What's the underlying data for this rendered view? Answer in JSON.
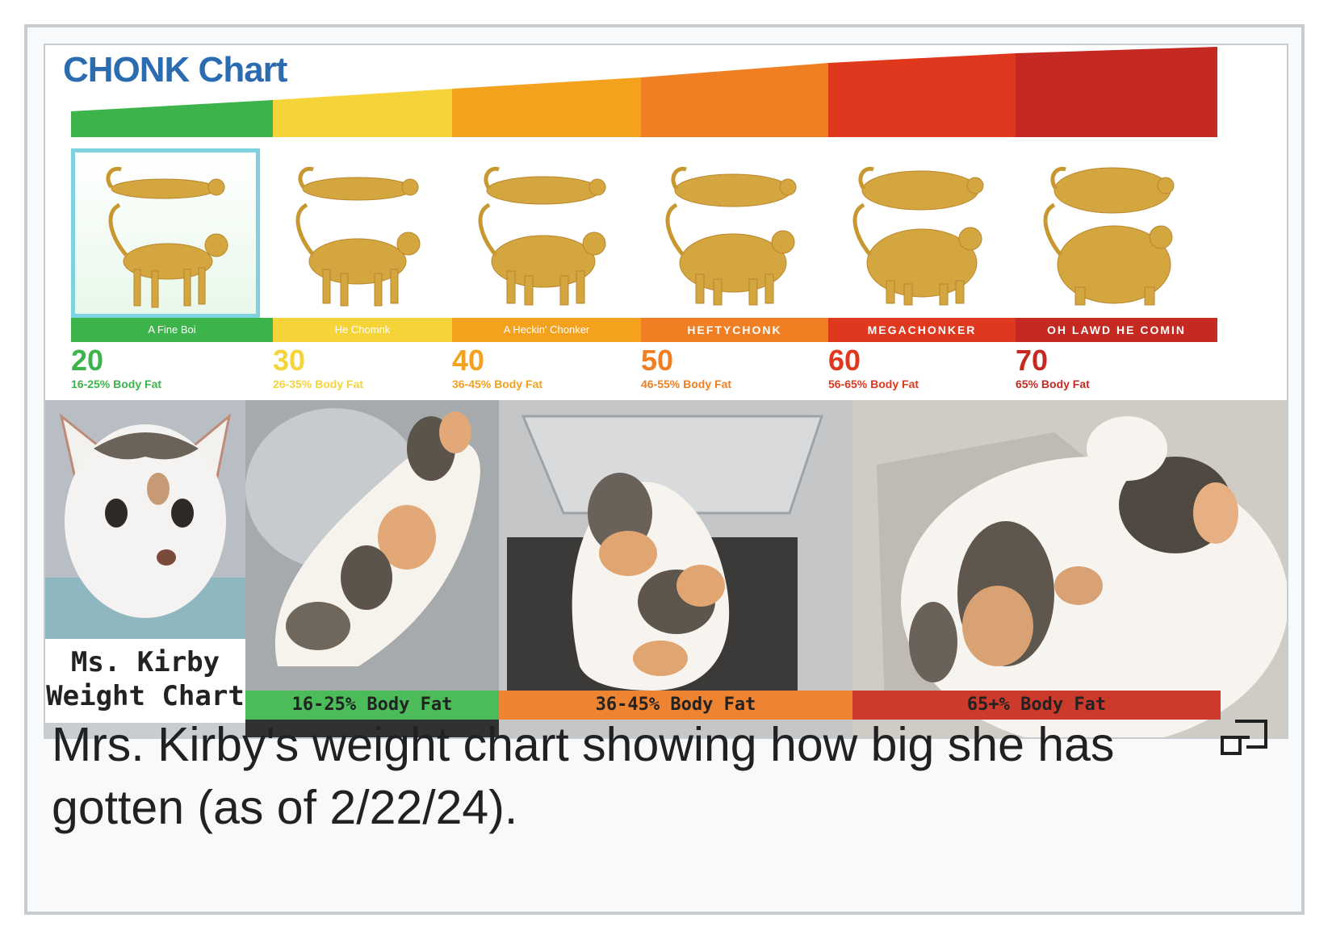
{
  "figure": {
    "chart_title": "CHONK Chart",
    "categories": [
      {
        "label": "A Fine Boi",
        "number": "20",
        "body_fat": "16-25% Body Fat",
        "color": "#3cb44b"
      },
      {
        "label": "He Chomnk",
        "number": "30",
        "body_fat": "26-35% Body Fat",
        "color": "#f5d43a"
      },
      {
        "label": "A Heckin' Chonker",
        "number": "40",
        "body_fat": "36-45% Body Fat",
        "color": "#f4a11d"
      },
      {
        "label": "HEFTYCHONK",
        "number": "50",
        "body_fat": "46-55% Body Fat",
        "color": "#ef7f22"
      },
      {
        "label": "MEGACHONKER",
        "number": "60",
        "body_fat": "56-65% Body Fat",
        "color": "#e0381f"
      },
      {
        "label": "OH LAWD HE COMIN",
        "number": "70",
        "body_fat": "65% Body Fat",
        "color": "#c42a22"
      }
    ],
    "kirby_label_line1": "Ms. Kirby",
    "kirby_label_line2": "Weight Chart",
    "photo_bars": [
      {
        "text": "16-25% Body Fat",
        "color": "#4cbb5a"
      },
      {
        "text": "36-45% Body Fat",
        "color": "#ee8332"
      },
      {
        "text": "65+% Body Fat",
        "color": "#cc3a2c"
      }
    ]
  },
  "caption": "Mrs. Kirby's weight chart showing how big she has gotten (as of 2/22/24).",
  "icons": {
    "enlarge": "enlarge-icon"
  }
}
